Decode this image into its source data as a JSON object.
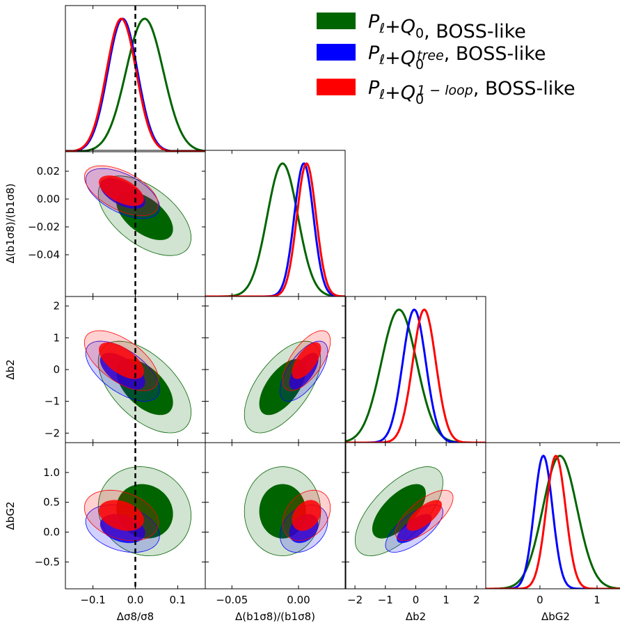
{
  "chart_data": {
    "type": "triangle",
    "title": "",
    "parameters": [
      {
        "key": "s8",
        "label": "Δσ8/σ8",
        "range": [
          -0.165,
          0.165
        ],
        "ticks": [
          -0.1,
          0.0,
          0.1
        ],
        "tick_labels": [
          "−0.1",
          "0.0",
          "0.1"
        ]
      },
      {
        "key": "b1s8",
        "label": "Δ(b1σ8)/(b1σ8)",
        "range": [
          -0.07,
          0.035
        ],
        "ticks": [
          -0.04,
          -0.02,
          0.0,
          0.02
        ],
        "tick_labels": [
          "−0.04",
          "−0.02",
          "0.00",
          "0.02"
        ],
        "xticks": [
          -0.05,
          0.0
        ],
        "xtick_labels": [
          "−0.05",
          "0.00"
        ]
      },
      {
        "key": "b2",
        "label": "Δb2",
        "range": [
          -2.3,
          2.3
        ],
        "ticks": [
          -2,
          -1,
          0,
          1,
          2
        ],
        "tick_labels": [
          "−2",
          "−1",
          "0",
          "1",
          "2"
        ]
      },
      {
        "key": "bg2",
        "label": "ΔbG2",
        "range": [
          -0.95,
          1.5
        ],
        "ticks": [
          -0.5,
          0.0,
          0.5,
          1.0
        ],
        "tick_labels": [
          "−0.5",
          "0.0",
          "0.5",
          "1.0"
        ],
        "xticks": [
          0,
          1
        ],
        "xtick_labels": [
          "0",
          "1"
        ]
      }
    ],
    "series": [
      {
        "name": "Pℓ+Q0, BOSS-like",
        "color": "#006400",
        "legend_main": "P",
        "legend_sub": "ℓ",
        "legend_plus": "+Q",
        "legend_sub2": "0",
        "legend_sup": "",
        "legend_tail": ", BOSS-like",
        "means": {
          "s8": 0.022,
          "b1s8": -0.012,
          "b2": -0.55,
          "bg2": 0.35
        },
        "sigmas": {
          "s8": 0.044,
          "b1s8": 0.0115,
          "b2": 0.58,
          "bg2": 0.3
        }
      },
      {
        "name": "Pℓ+Q0+B0tree, BOSS-like",
        "color": "#0000ff",
        "legend_main": "P",
        "legend_sub": "ℓ",
        "legend_plus": "+Q",
        "legend_sub2": "0",
        "legend_sup": "tree",
        "legend_tail": ", BOSS-like",
        "means": {
          "s8": -0.03,
          "b1s8": 0.004,
          "b2": -0.05,
          "bg2": 0.06
        },
        "sigmas": {
          "s8": 0.035,
          "b1s8": 0.0072,
          "b2": 0.38,
          "bg2": 0.16
        }
      },
      {
        "name": "Pℓ+Q0+B01-loop, BOSS-like",
        "color": "#ff0000",
        "legend_main": "P",
        "legend_sub": "ℓ",
        "legend_plus": "+Q",
        "legend_sub2": "0",
        "legend_sup": "1 − loop",
        "legend_tail": ", BOSS-like",
        "means": {
          "s8": -0.033,
          "b1s8": 0.006,
          "b2": 0.28,
          "bg2": 0.28
        },
        "sigmas": {
          "s8": 0.035,
          "b1s8": 0.0072,
          "b2": 0.38,
          "bg2": 0.17
        }
      }
    ],
    "correlations": {
      "s8|b1s8": [
        -0.55,
        -0.55,
        -0.55
      ],
      "s8|b2": [
        -0.55,
        -0.6,
        -0.6
      ],
      "s8|bg2": [
        -0.1,
        -0.3,
        -0.3
      ],
      "b1s8|b2": [
        0.6,
        0.65,
        0.65
      ],
      "b1s8|bg2": [
        0.0,
        0.3,
        0.3
      ],
      "b2|bg2": [
        0.65,
        0.7,
        0.7
      ]
    },
    "reference_line": {
      "parameter": "s8",
      "value": 0.0,
      "style": "dashed",
      "color": "#000000"
    },
    "legend": {
      "placement": "top-right"
    },
    "grid": false
  }
}
